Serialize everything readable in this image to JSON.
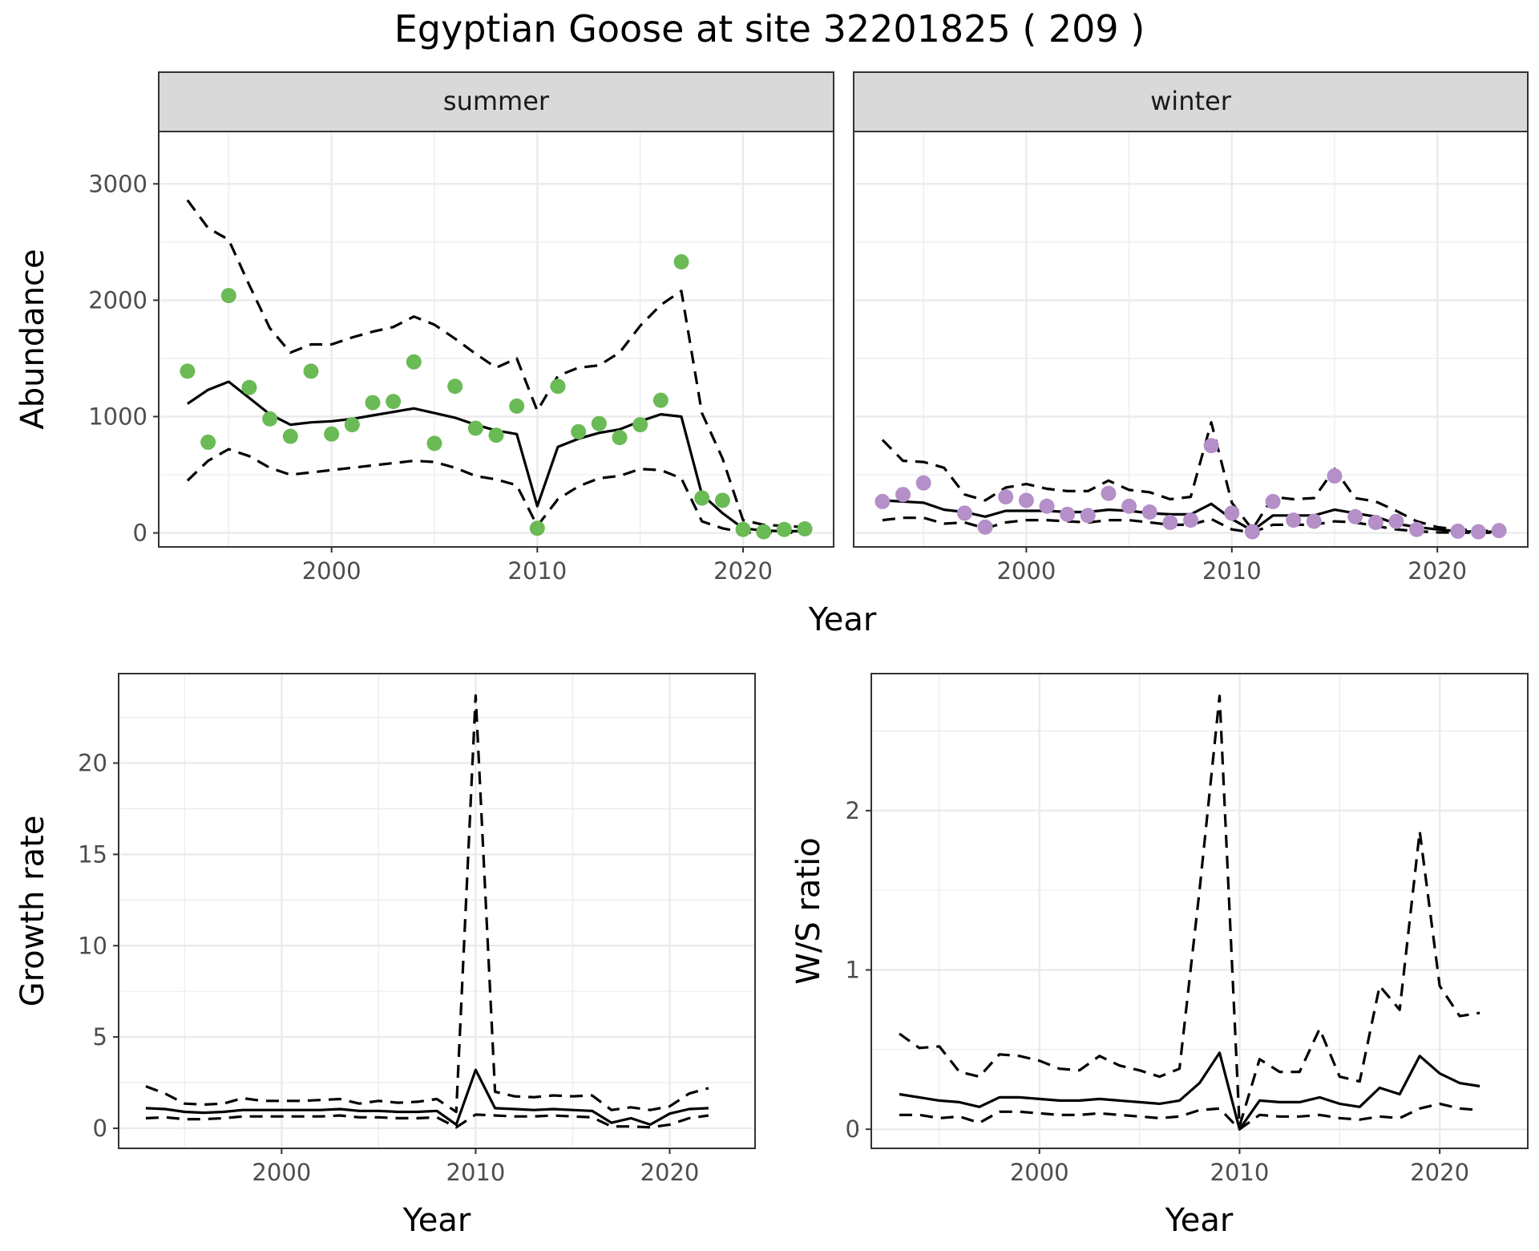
{
  "title": "Egyptian Goose at site 32201825 ( 209 )",
  "colors": {
    "summer": "#6aba55",
    "winter": "#b48fc8",
    "line": "#000000",
    "strip_bg": "#d9d9d9",
    "grid": "#ebebeb",
    "axis_text": "#4d4d4d"
  },
  "chart_data": [
    {
      "type": "scatter",
      "facet": "summer",
      "xlabel": "Year",
      "ylabel": "Abundance",
      "xticks": [
        2000,
        2010,
        2020
      ],
      "yticks": [
        0,
        1000,
        2000,
        3000
      ],
      "xlim": [
        1991.6,
        2024.4
      ],
      "ylim": [
        -120,
        3450
      ],
      "x": [
        1993,
        1994,
        1995,
        1996,
        1997,
        1998,
        1999,
        2000,
        2001,
        2002,
        2003,
        2004,
        2005,
        2006,
        2007,
        2008,
        2009,
        2010,
        2011,
        2012,
        2013,
        2014,
        2015,
        2016,
        2017,
        2018,
        2019,
        2020,
        2021,
        2022,
        2023
      ],
      "series": [
        {
          "role": "observed",
          "color": "#6aba55",
          "values": [
            1390,
            780,
            2040,
            1250,
            980,
            830,
            1390,
            850,
            930,
            1120,
            1130,
            1470,
            770,
            1260,
            900,
            840,
            1090,
            40,
            1260,
            870,
            940,
            820,
            930,
            1140,
            2330,
            300,
            280,
            30,
            10,
            30,
            35
          ]
        },
        {
          "role": "fit",
          "style": "solid",
          "values": [
            1110,
            1230,
            1300,
            1160,
            1020,
            930,
            950,
            960,
            980,
            1010,
            1040,
            1070,
            1030,
            990,
            930,
            880,
            850,
            230,
            740,
            810,
            860,
            890,
            960,
            1020,
            1000,
            330,
            170,
            40,
            20,
            15,
            15
          ]
        },
        {
          "role": "upper",
          "style": "dashed",
          "values": [
            2860,
            2620,
            2520,
            2130,
            1760,
            1550,
            1620,
            1620,
            1680,
            1730,
            1770,
            1860,
            1790,
            1670,
            1540,
            1420,
            1500,
            1050,
            1350,
            1420,
            1440,
            1550,
            1780,
            1960,
            2080,
            1030,
            640,
            110,
            70,
            60,
            50
          ]
        },
        {
          "role": "lower",
          "style": "dashed",
          "values": [
            450,
            620,
            720,
            660,
            560,
            500,
            520,
            540,
            560,
            580,
            600,
            620,
            610,
            560,
            490,
            460,
            410,
            60,
            290,
            400,
            470,
            490,
            550,
            540,
            470,
            100,
            40,
            5,
            3,
            3,
            3
          ]
        }
      ]
    },
    {
      "type": "scatter",
      "facet": "winter",
      "xlabel": "Year",
      "ylabel": "Abundance",
      "xticks": [
        2000,
        2010,
        2020
      ],
      "yticks": [
        0,
        1000,
        2000,
        3000
      ],
      "xlim": [
        1991.6,
        2024.4
      ],
      "ylim": [
        -120,
        3450
      ],
      "x": [
        1993,
        1994,
        1995,
        1996,
        1997,
        1998,
        1999,
        2000,
        2001,
        2002,
        2003,
        2004,
        2005,
        2006,
        2007,
        2008,
        2009,
        2010,
        2011,
        2012,
        2013,
        2014,
        2015,
        2016,
        2017,
        2018,
        2019,
        2020,
        2021,
        2022,
        2023
      ],
      "series": [
        {
          "role": "observed",
          "color": "#b48fc8",
          "values": [
            270,
            330,
            430,
            null,
            170,
            50,
            310,
            280,
            230,
            160,
            150,
            340,
            230,
            180,
            90,
            110,
            750,
            170,
            10,
            270,
            110,
            100,
            490,
            140,
            90,
            100,
            30,
            null,
            15,
            10,
            20
          ]
        },
        {
          "role": "fit",
          "style": "solid",
          "values": [
            280,
            270,
            260,
            200,
            180,
            140,
            190,
            190,
            190,
            180,
            180,
            200,
            190,
            170,
            160,
            160,
            250,
            120,
            20,
            150,
            150,
            150,
            200,
            170,
            140,
            80,
            50,
            30,
            15,
            10,
            10
          ]
        },
        {
          "role": "upper",
          "style": "dashed",
          "values": [
            800,
            620,
            610,
            560,
            330,
            280,
            390,
            420,
            380,
            360,
            360,
            450,
            370,
            350,
            290,
            310,
            950,
            260,
            30,
            310,
            290,
            300,
            550,
            300,
            270,
            190,
            100,
            50,
            30,
            20,
            15
          ]
        },
        {
          "role": "lower",
          "style": "dashed",
          "values": [
            110,
            130,
            130,
            80,
            90,
            40,
            90,
            110,
            110,
            100,
            90,
            110,
            110,
            90,
            70,
            70,
            120,
            30,
            5,
            70,
            70,
            70,
            100,
            90,
            60,
            30,
            15,
            5,
            3,
            2,
            2
          ]
        }
      ]
    },
    {
      "type": "line",
      "xlabel": "Year",
      "ylabel": "Growth rate",
      "xticks": [
        2000,
        2010,
        2020
      ],
      "yticks": [
        0,
        5,
        10,
        15,
        20
      ],
      "xlim": [
        1991.6,
        2024.4
      ],
      "ylim": [
        -1.1,
        24.9
      ],
      "x": [
        1993,
        1994,
        1995,
        1996,
        1997,
        1998,
        1999,
        2000,
        2001,
        2002,
        2003,
        2004,
        2005,
        2006,
        2007,
        2008,
        2009,
        2010,
        2011,
        2012,
        2013,
        2014,
        2015,
        2016,
        2017,
        2018,
        2019,
        2020,
        2021,
        2022
      ],
      "series": [
        {
          "role": "fit",
          "style": "solid",
          "values": [
            1.1,
            1.05,
            0.9,
            0.85,
            0.9,
            1.0,
            1.0,
            1.0,
            1.0,
            1.0,
            1.05,
            0.95,
            0.95,
            0.9,
            0.9,
            0.95,
            0.2,
            3.2,
            1.1,
            1.05,
            1.0,
            1.05,
            1.0,
            0.95,
            0.3,
            0.55,
            0.2,
            0.8,
            1.05,
            1.1
          ]
        },
        {
          "role": "upper",
          "style": "dashed",
          "values": [
            2.3,
            1.9,
            1.35,
            1.3,
            1.35,
            1.65,
            1.5,
            1.5,
            1.5,
            1.55,
            1.6,
            1.35,
            1.5,
            1.4,
            1.45,
            1.6,
            0.9,
            23.7,
            2.0,
            1.75,
            1.7,
            1.8,
            1.75,
            1.8,
            1.0,
            1.15,
            1.0,
            1.2,
            1.9,
            2.2
          ]
        },
        {
          "role": "lower",
          "style": "dashed",
          "values": [
            0.55,
            0.6,
            0.5,
            0.5,
            0.55,
            0.65,
            0.65,
            0.65,
            0.65,
            0.65,
            0.7,
            0.6,
            0.6,
            0.55,
            0.55,
            0.6,
            0.05,
            0.75,
            0.7,
            0.65,
            0.65,
            0.7,
            0.65,
            0.6,
            0.1,
            0.1,
            0.05,
            0.2,
            0.55,
            0.7
          ]
        }
      ]
    },
    {
      "type": "line",
      "xlabel": "Year",
      "ylabel": "W/S ratio",
      "xticks": [
        2000,
        2010,
        2020
      ],
      "yticks": [
        0,
        1,
        2
      ],
      "xlim": [
        1991.6,
        2024.4
      ],
      "ylim": [
        -0.12,
        2.86
      ],
      "x": [
        1993,
        1994,
        1995,
        1996,
        1997,
        1998,
        1999,
        2000,
        2001,
        2002,
        2003,
        2004,
        2005,
        2006,
        2007,
        2008,
        2009,
        2010,
        2011,
        2012,
        2013,
        2014,
        2015,
        2016,
        2017,
        2018,
        2019,
        2020,
        2021,
        2022
      ],
      "series": [
        {
          "role": "fit",
          "style": "solid",
          "values": [
            0.22,
            0.2,
            0.18,
            0.17,
            0.14,
            0.2,
            0.2,
            0.19,
            0.18,
            0.18,
            0.19,
            0.18,
            0.17,
            0.16,
            0.18,
            0.29,
            0.48,
            0.0,
            0.18,
            0.17,
            0.17,
            0.2,
            0.16,
            0.14,
            0.26,
            0.22,
            0.46,
            0.35,
            0.29,
            0.27
          ]
        },
        {
          "role": "upper",
          "style": "dashed",
          "values": [
            0.6,
            0.51,
            0.52,
            0.36,
            0.33,
            0.47,
            0.46,
            0.43,
            0.38,
            0.37,
            0.46,
            0.4,
            0.37,
            0.33,
            0.38,
            1.5,
            2.72,
            0.02,
            0.44,
            0.36,
            0.36,
            0.63,
            0.33,
            0.3,
            0.9,
            0.75,
            1.87,
            0.9,
            0.71,
            0.73
          ]
        },
        {
          "role": "lower",
          "style": "dashed",
          "values": [
            0.09,
            0.09,
            0.07,
            0.08,
            0.04,
            0.11,
            0.11,
            0.1,
            0.09,
            0.09,
            0.1,
            0.09,
            0.08,
            0.07,
            0.08,
            0.12,
            0.13,
            0.0,
            0.09,
            0.08,
            0.08,
            0.09,
            0.07,
            0.06,
            0.08,
            0.07,
            0.13,
            0.16,
            0.13,
            0.12
          ]
        }
      ]
    }
  ]
}
